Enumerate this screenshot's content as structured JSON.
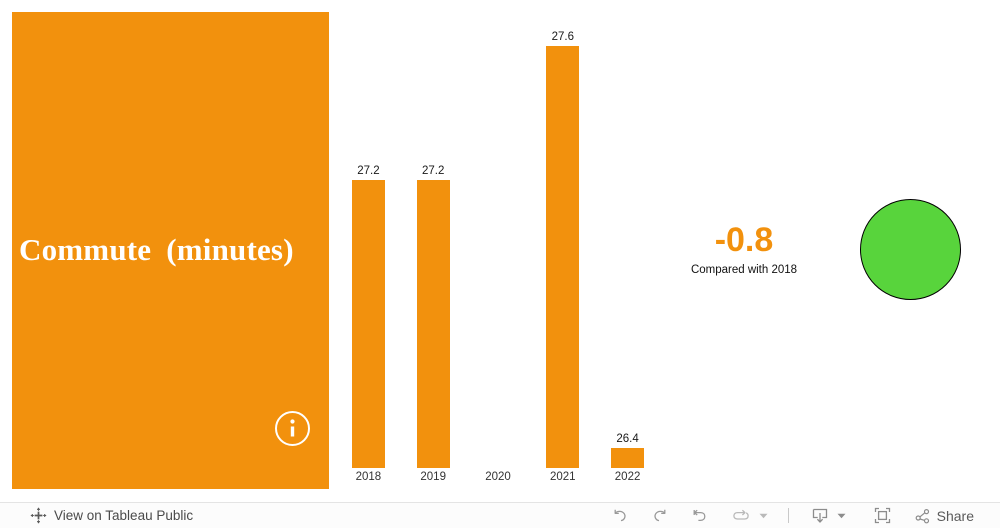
{
  "title_card": {
    "title": "Commute (minutes)",
    "bg_color": "#F2910D"
  },
  "chart_data": {
    "type": "bar",
    "title": "Commute (minutes)",
    "categories": [
      "2018",
      "2019",
      "2020",
      "2021",
      "2022"
    ],
    "values": [
      27.2,
      27.2,
      null,
      27.6,
      26.4
    ],
    "xlabel": "",
    "ylabel": "",
    "ylim": [
      26.34,
      27.7
    ],
    "grid": false,
    "legend": false,
    "bar_color": "#F2910D"
  },
  "kpi": {
    "value": "-0.8",
    "caption": "Compared with 2018",
    "value_color": "#F2910D"
  },
  "indicator": {
    "fill_color": "#58D43C",
    "outline_color": "#000000"
  },
  "toolbar": {
    "view_label": "View on Tableau Public",
    "share_label": "Share",
    "icon_names": [
      "tableau-logo-icon",
      "undo-icon",
      "redo-icon",
      "revert-icon",
      "refresh-icon",
      "caret-down-icon",
      "download-icon",
      "caret-down-icon",
      "fullscreen-icon",
      "share-nodes-icon"
    ],
    "icon_color": "#8c8c8c"
  }
}
